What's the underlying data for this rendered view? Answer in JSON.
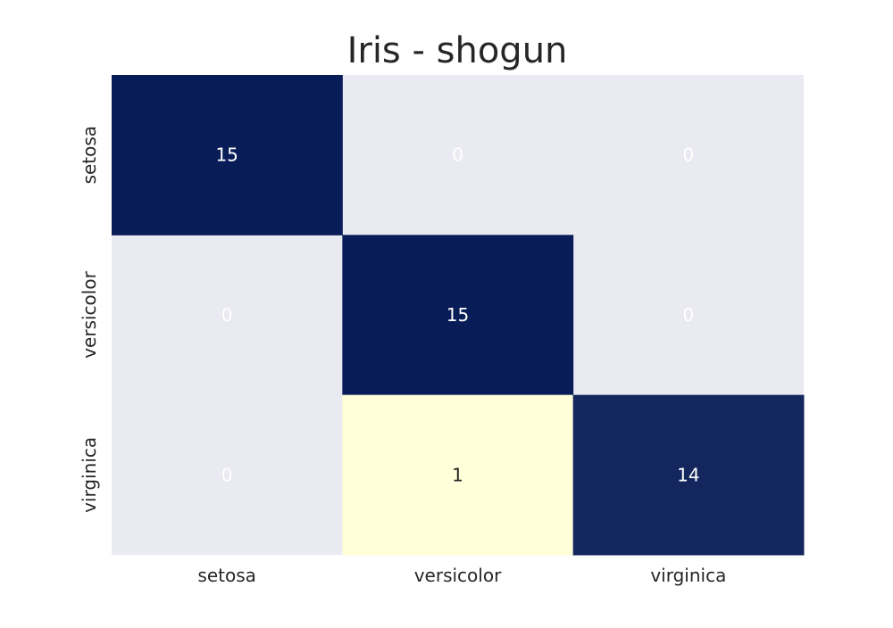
{
  "chart_data": {
    "type": "heatmap",
    "title": "Iris - shogun",
    "xlabel": "",
    "ylabel": "",
    "x_categories": [
      "setosa",
      "versicolor",
      "virginica"
    ],
    "y_categories": [
      "setosa",
      "versicolor",
      "virginica"
    ],
    "values": [
      [
        15,
        0,
        0
      ],
      [
        0,
        15,
        0
      ],
      [
        0,
        1,
        14
      ]
    ],
    "colorbar": false,
    "colors": {
      "background": "#eaeaf2",
      "zero_text": "#ffffff",
      "colormap": [
        "#ffffd9",
        "#081d58"
      ]
    }
  }
}
